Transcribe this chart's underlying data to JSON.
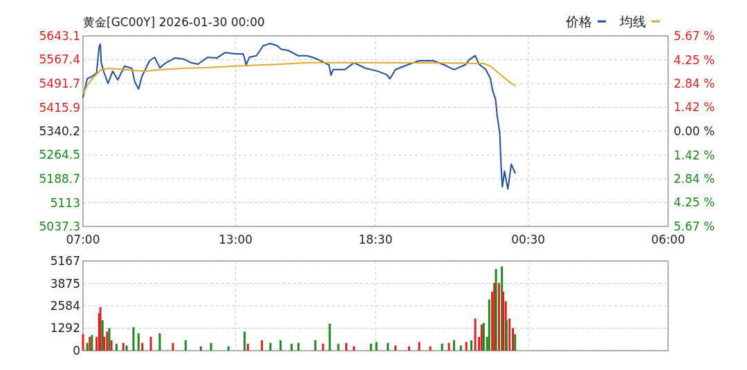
{
  "chart_data": [
    {
      "type": "line",
      "title": "黄金[GC00Y] 2026-01-30 00:00",
      "legend": "top right",
      "grid": true,
      "xlim": [
        "2026-01-29T07:00",
        "2026-01-30T06:00"
      ],
      "xticks": [
        {
          "value": "2026-01-29T07:00",
          "label": "07:00"
        },
        {
          "value": "2026-01-29T13:00",
          "label": "13:00"
        },
        {
          "value": "2026-01-29T18:30",
          "label": "18:30"
        },
        {
          "value": "2026-01-30T00:30",
          "label": "00:30"
        },
        {
          "value": "2026-01-30T06:00",
          "label": "06:00"
        }
      ],
      "ylim": [
        5037.3,
        5643.1
      ],
      "yticks": [
        5037.3,
        5113.0,
        5188.7,
        5264.5,
        5340.2,
        5415.9,
        5491.7,
        5567.4,
        5643.1
      ],
      "y2lim": [
        -5.67,
        5.67
      ],
      "y2ticks": [
        {
          "value": -5.67,
          "label": "5.67 %"
        },
        {
          "value": -4.25,
          "label": "4.25 %"
        },
        {
          "value": -2.84,
          "label": "2.84 %"
        },
        {
          "value": -1.42,
          "label": "1.42 %"
        },
        {
          "value": 0,
          "label": "0.00 %"
        },
        {
          "value": 1.42,
          "label": "1.42 %"
        },
        {
          "value": 2.84,
          "label": "2.84 %"
        },
        {
          "value": 4.25,
          "label": "4.25 %"
        },
        {
          "value": 5.67,
          "label": "5.67 %"
        }
      ],
      "series": [
        {
          "name": "价格",
          "color": "#1f4e9c",
          "x": [
            "2026-01-29T07:00",
            "2026-01-29T07:10",
            "2026-01-29T07:21",
            "2026-01-29T07:32",
            "2026-01-29T07:38",
            "2026-01-29T07:41",
            "2026-01-29T07:43",
            "2026-01-29T07:49",
            "2026-01-29T07:59",
            "2026-01-29T08:10",
            "2026-01-29T08:22",
            "2026-01-29T08:38",
            "2026-01-29T08:55",
            "2026-01-29T09:02",
            "2026-01-29T09:11",
            "2026-01-29T09:19",
            "2026-01-29T09:37",
            "2026-01-29T09:49",
            "2026-01-29T10:01",
            "2026-01-29T10:16",
            "2026-01-29T10:37",
            "2026-01-29T10:59",
            "2026-01-29T11:15",
            "2026-01-29T11:31",
            "2026-01-29T11:54",
            "2026-01-29T12:16",
            "2026-01-29T12:35",
            "2026-01-29T13:00",
            "2026-01-29T13:18",
            "2026-01-29T13:25",
            "2026-01-29T13:32",
            "2026-01-29T13:49",
            "2026-01-29T14:05",
            "2026-01-29T14:22",
            "2026-01-29T14:38",
            "2026-01-29T14:47",
            "2026-01-29T15:04",
            "2026-01-29T15:27",
            "2026-01-29T15:48",
            "2026-01-29T16:01",
            "2026-01-29T16:13",
            "2026-01-29T16:40",
            "2026-01-29T16:45",
            "2026-01-29T16:50",
            "2026-01-29T17:18",
            "2026-01-29T17:39",
            "2026-01-29T18:07",
            "2026-01-29T18:35",
            "2026-01-29T18:56",
            "2026-01-29T19:04",
            "2026-01-29T19:17",
            "2026-01-29T19:45",
            "2026-01-29T20:13",
            "2026-01-29T20:46",
            "2026-01-29T21:12",
            "2026-01-29T21:35",
            "2026-01-29T22:01",
            "2026-01-29T22:12",
            "2026-01-29T22:25",
            "2026-01-29T22:34",
            "2026-01-29T22:50",
            "2026-01-29T23:01",
            "2026-01-29T23:06",
            "2026-01-29T23:13",
            "2026-01-29T23:17",
            "2026-01-29T23:23",
            "2026-01-29T23:26",
            "2026-01-29T23:29",
            "2026-01-29T23:34",
            "2026-01-29T23:42",
            "2026-01-29T23:50",
            "2026-01-29T23:59"
          ],
          "values": [
            5448,
            5507,
            5514,
            5525,
            5608,
            5617,
            5558,
            5529,
            5492,
            5531,
            5503,
            5547,
            5540,
            5498,
            5474,
            5514,
            5564,
            5575,
            5542,
            5558,
            5573,
            5569,
            5558,
            5553,
            5575,
            5573,
            5590,
            5586,
            5586,
            5551,
            5575,
            5580,
            5612,
            5619,
            5612,
            5601,
            5597,
            5580,
            5580,
            5575,
            5569,
            5551,
            5518,
            5536,
            5536,
            5558,
            5540,
            5531,
            5520,
            5507,
            5536,
            5551,
            5564,
            5564,
            5551,
            5536,
            5551,
            5569,
            5580,
            5553,
            5536,
            5507,
            5470,
            5441,
            5389,
            5332,
            5228,
            5163,
            5213,
            5156,
            5235,
            5207
          ]
        },
        {
          "name": "均线",
          "color": "#e0a82e",
          "x": [
            "2026-01-29T07:00",
            "2026-01-29T07:13",
            "2026-01-29T07:29",
            "2026-01-29T07:43",
            "2026-01-29T08:02",
            "2026-01-29T09:11",
            "2026-01-29T09:32",
            "2026-01-29T10:05",
            "2026-01-29T10:54",
            "2026-01-29T11:48",
            "2026-01-29T13:00",
            "2026-01-29T14:05",
            "2026-01-29T14:47",
            "2026-01-29T15:48",
            "2026-01-29T18:40",
            "2026-01-29T21:23",
            "2026-01-29T22:45",
            "2026-01-29T23:01",
            "2026-01-29T23:17",
            "2026-01-29T23:34",
            "2026-01-29T23:50",
            "2026-01-29T23:59"
          ],
          "values": [
            5459,
            5492,
            5518,
            5536,
            5540,
            5532,
            5531,
            5536,
            5540,
            5542,
            5547,
            5551,
            5553,
            5558,
            5558,
            5557,
            5555,
            5547,
            5529,
            5509,
            5492,
            5485
          ]
        }
      ]
    },
    {
      "type": "bar",
      "grid": true,
      "tick_labels": "y",
      "xlim": [
        "2026-01-29T07:00",
        "2026-01-30T06:00"
      ],
      "xticks": [
        {
          "value": "2026-01-29T07:00",
          "label": null
        },
        {
          "value": "2026-01-29T13:00",
          "label": null
        },
        {
          "value": "2026-01-29T18:30",
          "label": null
        },
        {
          "value": "2026-01-30T00:30",
          "label": null
        },
        {
          "value": "2026-01-30T06:00",
          "label": null
        }
      ],
      "ylim": [
        0,
        5167
      ],
      "yticks": [
        0,
        1292,
        2584,
        3875,
        5167
      ],
      "x": [
        "2026-01-29T07:00",
        "2026-01-29T07:10",
        "2026-01-29T07:16",
        "2026-01-29T07:21",
        "2026-01-29T07:32",
        "2026-01-29T07:38",
        "2026-01-29T07:41",
        "2026-01-29T07:46",
        "2026-01-29T07:50",
        "2026-01-29T07:57",
        "2026-01-29T08:02",
        "2026-01-29T08:07",
        "2026-01-29T08:19",
        "2026-01-29T08:35",
        "2026-01-29T08:43",
        "2026-01-29T08:59",
        "2026-01-29T09:11",
        "2026-01-29T09:20",
        "2026-01-29T09:40",
        "2026-01-29T10:01",
        "2026-01-29T10:32",
        "2026-01-29T11:02",
        "2026-01-29T11:38",
        "2026-01-29T12:02",
        "2026-01-29T12:43",
        "2026-01-29T13:21",
        "2026-01-29T13:29",
        "2026-01-29T14:02",
        "2026-01-29T14:22",
        "2026-01-29T14:46",
        "2026-01-29T15:12",
        "2026-01-29T15:28",
        "2026-01-29T16:08",
        "2026-01-29T16:26",
        "2026-01-29T16:42",
        "2026-01-29T17:02",
        "2026-01-29T17:21",
        "2026-01-29T17:39",
        "2026-01-29T18:19",
        "2026-01-29T18:32",
        "2026-01-29T18:59",
        "2026-01-29T19:17",
        "2026-01-29T19:49",
        "2026-01-29T20:13",
        "2026-01-29T20:39",
        "2026-01-29T21:07",
        "2026-01-29T21:23",
        "2026-01-29T21:35",
        "2026-01-29T21:51",
        "2026-01-29T22:04",
        "2026-01-29T22:16",
        "2026-01-29T22:25",
        "2026-01-29T22:34",
        "2026-01-29T22:40",
        "2026-01-29T22:45",
        "2026-01-29T22:53",
        "2026-01-29T22:58",
        "2026-01-29T23:05",
        "2026-01-29T23:10",
        "2026-01-29T23:14",
        "2026-01-29T23:21",
        "2026-01-29T23:28",
        "2026-01-29T23:31",
        "2026-01-29T23:37",
        "2026-01-29T23:39",
        "2026-01-29T23:46",
        "2026-01-29T23:54",
        "2026-01-29T23:59"
      ],
      "values": [
        950,
        450,
        800,
        900,
        800,
        2150,
        2500,
        1750,
        800,
        1100,
        1300,
        600,
        400,
        450,
        300,
        1350,
        1000,
        450,
        800,
        1000,
        450,
        600,
        250,
        450,
        250,
        1100,
        400,
        600,
        450,
        600,
        400,
        450,
        600,
        400,
        1550,
        400,
        450,
        250,
        400,
        500,
        450,
        300,
        250,
        500,
        250,
        400,
        450,
        600,
        300,
        500,
        600,
        1850,
        800,
        1500,
        1600,
        800,
        2950,
        3400,
        3900,
        4700,
        3900,
        4850,
        3400,
        2850,
        1750,
        1850,
        1300,
        950
      ],
      "colors": [
        "#e02020",
        "#1a8a1a",
        "#e02020",
        "#1a8a1a",
        "#e02020",
        "#e02020",
        "#e02020",
        "#1a8a1a",
        "#e02020",
        "#e02020",
        "#1a8a1a",
        "#e02020",
        "#1a8a1a",
        "#e02020",
        "#1a8a1a",
        "#1a8a1a",
        "#1a8a1a",
        "#e02020",
        "#e02020",
        "#1a8a1a",
        "#e02020",
        "#1a8a1a",
        "#1a8a1a",
        "#1a8a1a",
        "#1a8a1a",
        "#1a8a1a",
        "#e02020",
        "#e02020",
        "#1a8a1a",
        "#1a8a1a",
        "#1a8a1a",
        "#1a8a1a",
        "#1a8a1a",
        "#e02020",
        "#1a8a1a",
        "#1a8a1a",
        "#e02020",
        "#e02020",
        "#1a8a1a",
        "#1a8a1a",
        "#1a8a1a",
        "#e02020",
        "#e02020",
        "#e02020",
        "#e02020",
        "#1a8a1a",
        "#e02020",
        "#1a8a1a",
        "#1a8a1a",
        "#e02020",
        "#1a8a1a",
        "#e02020",
        "#e02020",
        "#e02020",
        "#1a8a1a",
        "#1a8a1a",
        "#1a8a1a",
        "#e02020",
        "#e02020",
        "#1a8a1a",
        "#e02020",
        "#1a8a1a",
        "#e02020",
        "#e02020",
        "#1a8a1a",
        "#e02020",
        "#e02020",
        "#1a8a1a"
      ]
    }
  ]
}
